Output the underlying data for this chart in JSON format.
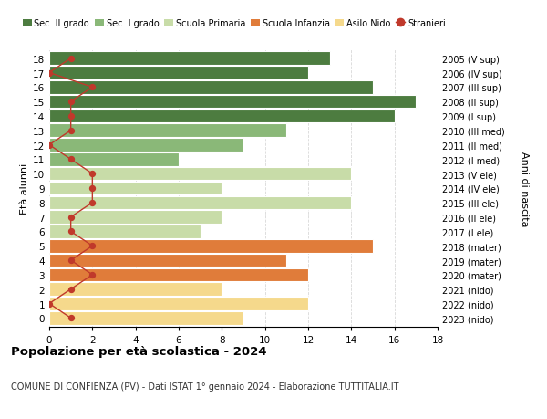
{
  "ages": [
    18,
    17,
    16,
    15,
    14,
    13,
    12,
    11,
    10,
    9,
    8,
    7,
    6,
    5,
    4,
    3,
    2,
    1,
    0
  ],
  "right_labels": [
    "2005 (V sup)",
    "2006 (IV sup)",
    "2007 (III sup)",
    "2008 (II sup)",
    "2009 (I sup)",
    "2010 (III med)",
    "2011 (II med)",
    "2012 (I med)",
    "2013 (V ele)",
    "2014 (IV ele)",
    "2015 (III ele)",
    "2016 (II ele)",
    "2017 (I ele)",
    "2018 (mater)",
    "2019 (mater)",
    "2020 (mater)",
    "2021 (nido)",
    "2022 (nido)",
    "2023 (nido)"
  ],
  "bar_values": [
    13,
    12,
    15,
    17,
    16,
    11,
    9,
    6,
    14,
    8,
    14,
    8,
    7,
    15,
    11,
    12,
    8,
    12,
    9
  ],
  "bar_colors": [
    "#4d7c40",
    "#4d7c40",
    "#4d7c40",
    "#4d7c40",
    "#4d7c40",
    "#8ab878",
    "#8ab878",
    "#8ab878",
    "#c8dca8",
    "#c8dca8",
    "#c8dca8",
    "#c8dca8",
    "#c8dca8",
    "#e07c3a",
    "#e07c3a",
    "#e07c3a",
    "#f5d98c",
    "#f5d98c",
    "#f5d98c"
  ],
  "stranieri": [
    1,
    0,
    2,
    1,
    1,
    1,
    0,
    1,
    2,
    2,
    2,
    1,
    1,
    2,
    1,
    2,
    1,
    0,
    1
  ],
  "stranieri_color": "#c0392b",
  "title": "Popolazione per età scolastica - 2024",
  "subtitle": "COMUNE DI CONFIENZA (PV) - Dati ISTAT 1° gennaio 2024 - Elaborazione TUTTITALIA.IT",
  "ylabel": "Età alunni",
  "right_ylabel": "Anni di nascita",
  "xlim": [
    0,
    18
  ],
  "xticks": [
    0,
    2,
    4,
    6,
    8,
    10,
    12,
    14,
    16,
    18
  ],
  "legend_labels": [
    "Sec. II grado",
    "Sec. I grado",
    "Scuola Primaria",
    "Scuola Infanzia",
    "Asilo Nido",
    "Stranieri"
  ],
  "legend_colors": [
    "#4d7c40",
    "#8ab878",
    "#c8dca8",
    "#e07c3a",
    "#f5d98c",
    "#c0392b"
  ],
  "bg_color": "#ffffff",
  "grid_color": "#d8d8d8",
  "bar_height": 0.92
}
